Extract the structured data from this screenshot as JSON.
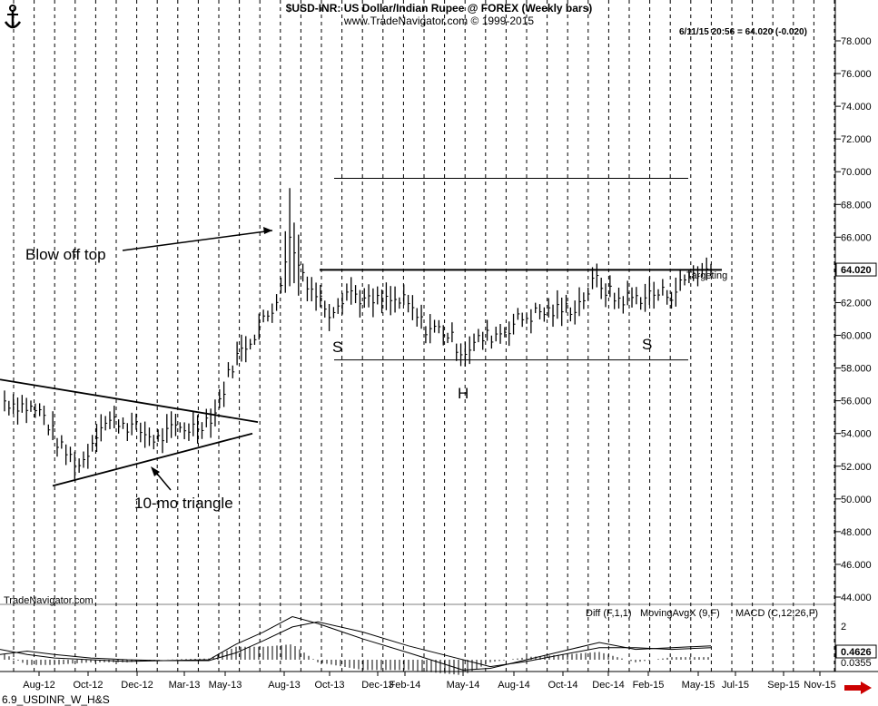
{
  "header": {
    "title": "$USD-INR:  US Dollar/Indian Rupee @ FOREX  (Weekly bars)",
    "site": "www.TradeNavigator.com © 1999-2015",
    "readout": "6/11/15 20:56 = 64.020 (-0.020)",
    "logo_icon": "anchor-icon"
  },
  "footer": {
    "label": "6.9_USDINR_W_H&S",
    "nav_icon": "right-arrow-icon",
    "nav_color": "#cc0000"
  },
  "watermark": "TradeNavigator.com",
  "chart_data": {
    "type": "candlestick",
    "title": "$USD-INR:  US Dollar/Indian Rupee @ FOREX  (Weekly bars)",
    "y_axis": {
      "range": [
        43.0,
        79.0
      ],
      "ticks": [
        "44.000",
        "46.000",
        "48.000",
        "50.000",
        "52.000",
        "54.000",
        "56.000",
        "58.000",
        "60.000",
        "62.000",
        "64.000",
        "66.000",
        "68.000",
        "70.000",
        "72.000",
        "74.000",
        "76.000",
        "78.000"
      ],
      "last_price_label": "64.020",
      "scale": "linear"
    },
    "x_axis": {
      "tick_labels": [
        "Aug-12",
        "Oct-12",
        "Dec-12",
        "Mar-13",
        "May-13",
        "Aug-13",
        "Oct-13",
        "Dec-13",
        "Feb-14",
        "May-14",
        "Aug-14",
        "Oct-14",
        "Dec-14",
        "Feb-15",
        "May-15",
        "Jul-15",
        "Sep-15",
        "Nov-15"
      ]
    },
    "grid": "vertical dotted",
    "price_path": [
      [
        "Jul-12",
        56.0
      ],
      [
        "Aug-12",
        55.7
      ],
      [
        "Sep-12",
        55.2
      ],
      [
        "Oct-12",
        53.0
      ],
      [
        "Oct-12b",
        52.0
      ],
      [
        "Nov-12",
        54.6
      ],
      [
        "Dec-12",
        54.8
      ],
      [
        "Jan-13",
        54.2
      ],
      [
        "Feb-13",
        53.6
      ],
      [
        "Mar-13",
        54.3
      ],
      [
        "Apr-13",
        54.4
      ],
      [
        "May-13",
        55.2
      ],
      [
        "Jun-13",
        58.4
      ],
      [
        "Jul-13",
        60.0
      ],
      [
        "Aug-13",
        61.5
      ],
      [
        "Aug-13b",
        65.3
      ],
      [
        "Sep-13",
        63.0
      ],
      [
        "Oct-13",
        61.5
      ],
      [
        "Nov-13",
        62.8
      ],
      [
        "Dec-13",
        62.0
      ],
      [
        "Jan-14",
        62.1
      ],
      [
        "Feb-14",
        62.0
      ],
      [
        "Mar-14",
        60.5
      ],
      [
        "Apr-14",
        60.3
      ],
      [
        "May-14",
        59.0
      ],
      [
        "Jun-14",
        59.8
      ],
      [
        "Jul-14",
        60.2
      ],
      [
        "Aug-14",
        61.0
      ],
      [
        "Sep-14",
        61.4
      ],
      [
        "Oct-14",
        61.5
      ],
      [
        "Nov-14",
        61.8
      ],
      [
        "Dec-14",
        63.4
      ],
      [
        "Jan-15",
        62.2
      ],
      [
        "Feb-15",
        62.3
      ],
      [
        "Mar-15",
        62.5
      ],
      [
        "Apr-15",
        62.6
      ],
      [
        "May-15",
        63.8
      ],
      [
        "Jun-15",
        64.02
      ]
    ],
    "annotations": [
      {
        "text": "Blow off top"
      },
      {
        "text": "10-mo triangle"
      },
      {
        "text": "S"
      },
      {
        "text": "H"
      },
      {
        "text": "S"
      },
      {
        "text": "Targeting"
      }
    ],
    "indicator": {
      "labels": [
        "Diff (F,1,1)",
        "MovingAvgX (9,F)",
        "MACD (C,12,26,F)"
      ],
      "axis_label": "2",
      "value_label": "0.4626",
      "hidden_label": "0.0355",
      "range": [
        -0.5,
        3.0
      ]
    }
  }
}
